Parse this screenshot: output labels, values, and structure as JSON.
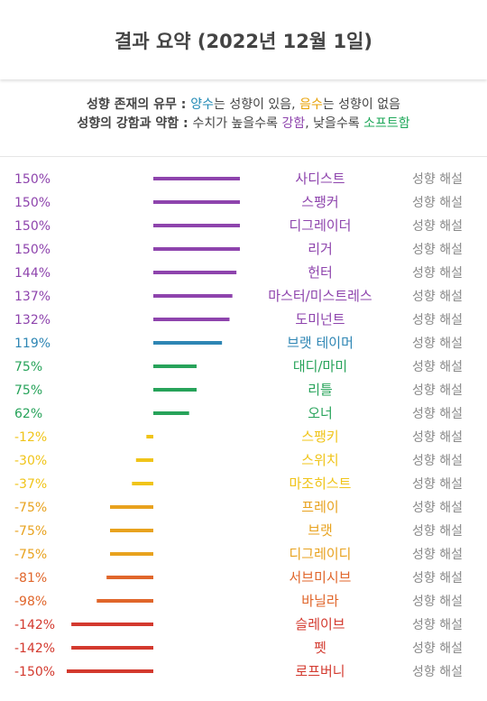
{
  "header": {
    "title": "결과 요약 (2022년 12월 1일)"
  },
  "legend": {
    "line1_label": "성향 존재의 유무 : ",
    "line1_pos": "양수",
    "line1_pos_text": "는 성향이 있음, ",
    "line1_neg": "음수",
    "line1_neg_text": "는 성향이 없음",
    "line2_label": "성향의 강함과 약함 : ",
    "line2_text1": "수치가 높을수록 ",
    "line2_strong": "강함",
    "line2_text2": ", 낮을수록 ",
    "line2_soft": "소프트함"
  },
  "explain_label": "성향 해설",
  "colors": {
    "purple": "#8e44ad",
    "blue": "#2e86b4",
    "green": "#27a35a",
    "yellow": "#f0c419",
    "orange": "#e8a21e",
    "dorange": "#e0662b",
    "red": "#d3392e"
  },
  "chart_data": {
    "type": "bar",
    "categories": [
      "사디스트",
      "스팽커",
      "디그레이더",
      "리거",
      "헌터",
      "마스터/미스트레스",
      "도미넌트",
      "브랫 테이머",
      "대디/마미",
      "리틀",
      "오너",
      "스팽키",
      "스위치",
      "마조히스트",
      "프레이",
      "브랫",
      "디그레이디",
      "서브미시브",
      "바닐라",
      "슬레이브",
      "펫",
      "로프버니"
    ],
    "values": [
      150,
      150,
      150,
      150,
      144,
      137,
      132,
      119,
      75,
      75,
      62,
      -12,
      -30,
      -37,
      -75,
      -75,
      -75,
      -81,
      -98,
      -142,
      -142,
      -150
    ],
    "labels": [
      "150%",
      "150%",
      "150%",
      "150%",
      "144%",
      "137%",
      "132%",
      "119%",
      "75%",
      "75%",
      "62%",
      "-12%",
      "-30%",
      "-37%",
      "-75%",
      "-75%",
      "-75%",
      "-81%",
      "-98%",
      "-142%",
      "-142%",
      "-150%"
    ],
    "bar_colors": [
      "purple",
      "purple",
      "purple",
      "purple",
      "purple",
      "purple",
      "purple",
      "blue",
      "green",
      "green",
      "green",
      "yellow",
      "yellow",
      "yellow",
      "orange",
      "orange",
      "orange",
      "dorange",
      "dorange",
      "red",
      "red",
      "red"
    ],
    "title": "",
    "xlabel": "",
    "ylabel": "",
    "xlim": [
      -150,
      150
    ]
  }
}
